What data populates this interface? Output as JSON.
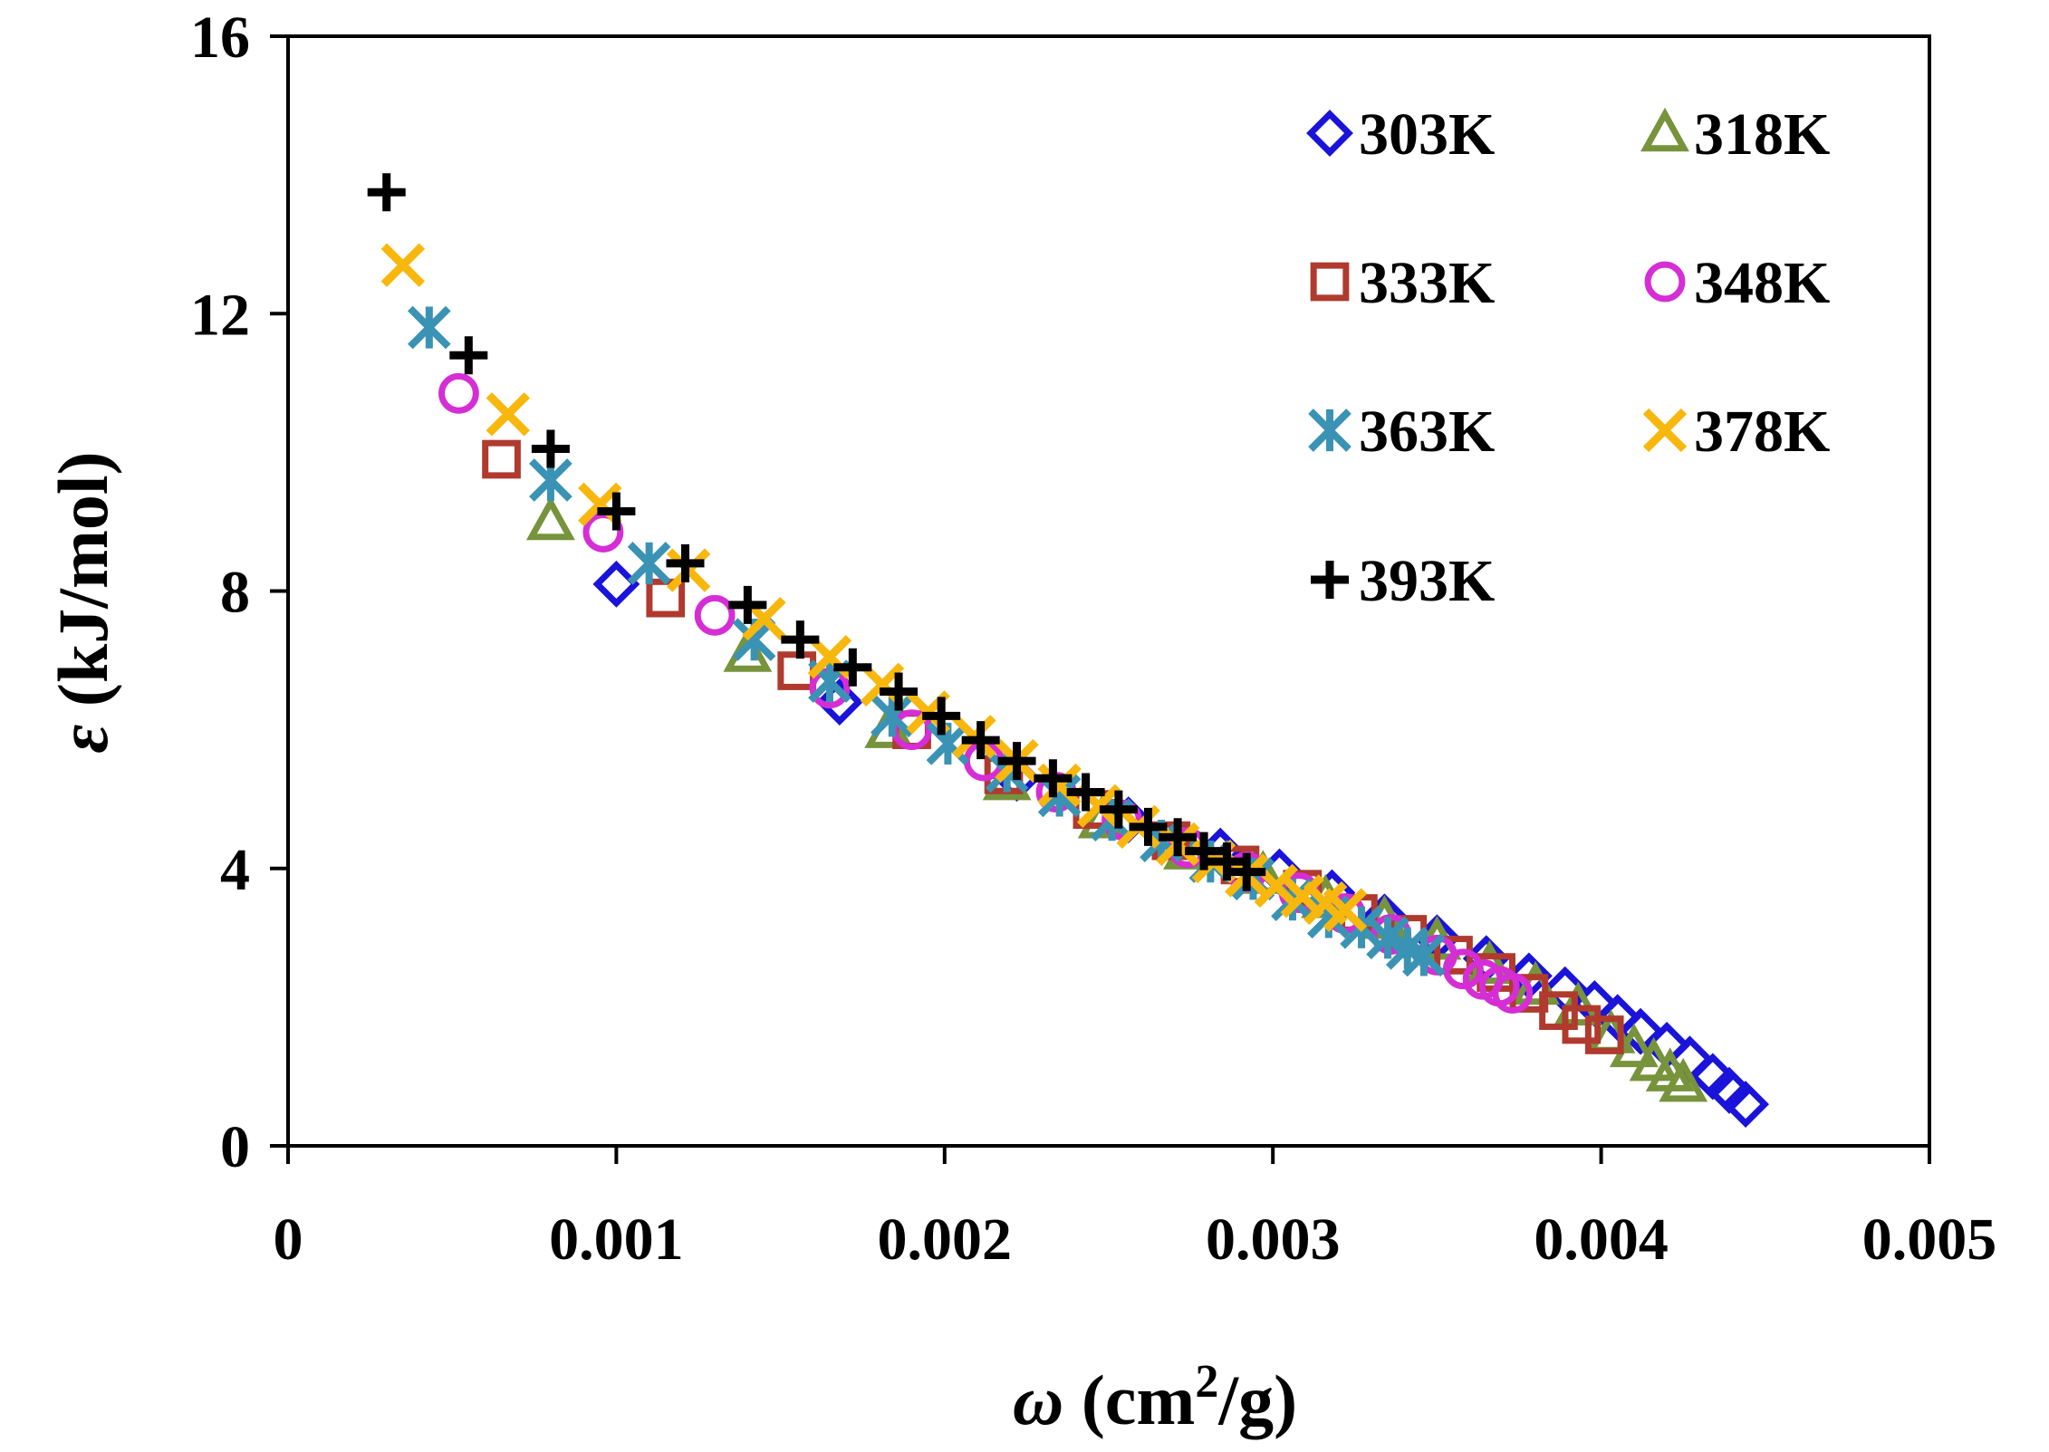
{
  "chart_data": {
    "type": "scatter",
    "title": "",
    "xlabel": {
      "symbol": "ω",
      "rest": " (cm",
      "sup": "2",
      "end": "/g)"
    },
    "ylabel": {
      "symbol": "ε",
      "rest": "  (kJ/mol)"
    },
    "xlim": [
      0,
      0.005
    ],
    "ylim": [
      0,
      16
    ],
    "x_ticks": [
      0,
      0.001,
      0.002,
      0.003,
      0.004,
      0.005
    ],
    "x_tick_labels": [
      "0",
      "0.001",
      "0.002",
      "0.003",
      "0.004",
      "0.005"
    ],
    "y_ticks": [
      0,
      4,
      8,
      12,
      16
    ],
    "y_tick_labels": [
      "0",
      "4",
      "8",
      "12",
      "16"
    ],
    "grid": false,
    "legend_position": "top-right",
    "series": [
      {
        "name": "303K",
        "marker": "diamond",
        "color": "#1a13d9",
        "x": [
          0.001,
          0.00168,
          0.00222,
          0.00256,
          0.00284,
          0.00302,
          0.00318,
          0.00334,
          0.0035,
          0.00365,
          0.00378,
          0.00389,
          0.00398,
          0.00405,
          0.00412,
          0.0042,
          0.00427,
          0.00434,
          0.00439,
          0.00444
        ],
        "y": [
          8.1,
          6.4,
          5.3,
          4.7,
          4.25,
          3.95,
          3.65,
          3.3,
          3.0,
          2.7,
          2.45,
          2.25,
          2.05,
          1.85,
          1.65,
          1.45,
          1.25,
          1.0,
          0.8,
          0.6
        ]
      },
      {
        "name": "318K",
        "marker": "triangle",
        "color": "#77933c",
        "x": [
          0.0008,
          0.0014,
          0.00183,
          0.00219,
          0.00248,
          0.00274,
          0.00297,
          0.00316,
          0.00334,
          0.0035,
          0.00366,
          0.0038,
          0.00393,
          0.00403,
          0.0041,
          0.00416,
          0.00421,
          0.00425
        ],
        "y": [
          9.0,
          7.1,
          6.0,
          5.25,
          4.7,
          4.25,
          3.9,
          3.55,
          3.25,
          2.95,
          2.6,
          2.3,
          2.0,
          1.6,
          1.4,
          1.2,
          1.05,
          0.9
        ]
      },
      {
        "name": "333K",
        "marker": "square",
        "color": "#b03a2e",
        "x": [
          0.00065,
          0.00115,
          0.00155,
          0.0019,
          0.00218,
          0.00245,
          0.00269,
          0.0029,
          0.00309,
          0.00326,
          0.00341,
          0.00355,
          0.00368,
          0.00378,
          0.00387,
          0.00394,
          0.00401
        ],
        "y": [
          9.9,
          7.9,
          6.85,
          6.0,
          5.35,
          4.85,
          4.4,
          4.05,
          3.7,
          3.35,
          3.05,
          2.75,
          2.5,
          2.2,
          1.95,
          1.75,
          1.6
        ]
      },
      {
        "name": "348K",
        "marker": "circle",
        "color": "#d52ed5",
        "x": [
          0.00052,
          0.00096,
          0.0013,
          0.00165,
          0.0019,
          0.00212,
          0.00234,
          0.00254,
          0.00274,
          0.00292,
          0.00308,
          0.00322,
          0.00336,
          0.0035,
          0.00358,
          0.00364,
          0.00369,
          0.00373
        ],
        "y": [
          10.85,
          8.85,
          7.65,
          6.6,
          6.0,
          5.55,
          5.1,
          4.7,
          4.3,
          3.95,
          3.65,
          3.35,
          3.05,
          2.75,
          2.55,
          2.4,
          2.3,
          2.2
        ]
      },
      {
        "name": "363K",
        "marker": "asterisk",
        "color": "#3a93b4",
        "x": [
          0.00043,
          0.0008,
          0.0011,
          0.00142,
          0.00165,
          0.00184,
          0.00201,
          0.00219,
          0.00235,
          0.00251,
          0.00266,
          0.00281,
          0.00294,
          0.00306,
          0.00317,
          0.00327,
          0.00335,
          0.00341,
          0.00346
        ],
        "y": [
          11.8,
          9.6,
          8.4,
          7.3,
          6.7,
          6.2,
          5.8,
          5.4,
          5.05,
          4.7,
          4.4,
          4.1,
          3.85,
          3.55,
          3.3,
          3.15,
          3.0,
          2.85,
          2.75
        ]
      },
      {
        "name": "378K",
        "marker": "x",
        "color": "#f8b70d",
        "x": [
          0.00035,
          0.00067,
          0.00095,
          0.00122,
          0.00145,
          0.00165,
          0.00181,
          0.00195,
          0.00209,
          0.00222,
          0.00235,
          0.00247,
          0.00259,
          0.00271,
          0.00282,
          0.00292,
          0.00301,
          0.00309,
          0.00316,
          0.00322
        ],
        "y": [
          12.7,
          10.55,
          9.25,
          8.3,
          7.6,
          7.05,
          6.65,
          6.25,
          5.9,
          5.55,
          5.2,
          4.9,
          4.6,
          4.35,
          4.1,
          3.9,
          3.75,
          3.6,
          3.5,
          3.4
        ]
      },
      {
        "name": "393K",
        "marker": "plus",
        "color": "#000000",
        "x": [
          0.0003,
          0.00055,
          0.0008,
          0.001,
          0.00121,
          0.0014,
          0.00156,
          0.00172,
          0.00186,
          0.00199,
          0.00211,
          0.00222,
          0.00233,
          0.00243,
          0.00253,
          0.00262,
          0.00271,
          0.00279,
          0.00286,
          0.00292
        ],
        "y": [
          13.75,
          11.4,
          10.05,
          9.15,
          8.4,
          7.8,
          7.3,
          6.9,
          6.55,
          6.2,
          5.85,
          5.55,
          5.3,
          5.1,
          4.85,
          4.6,
          4.45,
          4.25,
          4.1,
          3.95
        ]
      }
    ]
  }
}
